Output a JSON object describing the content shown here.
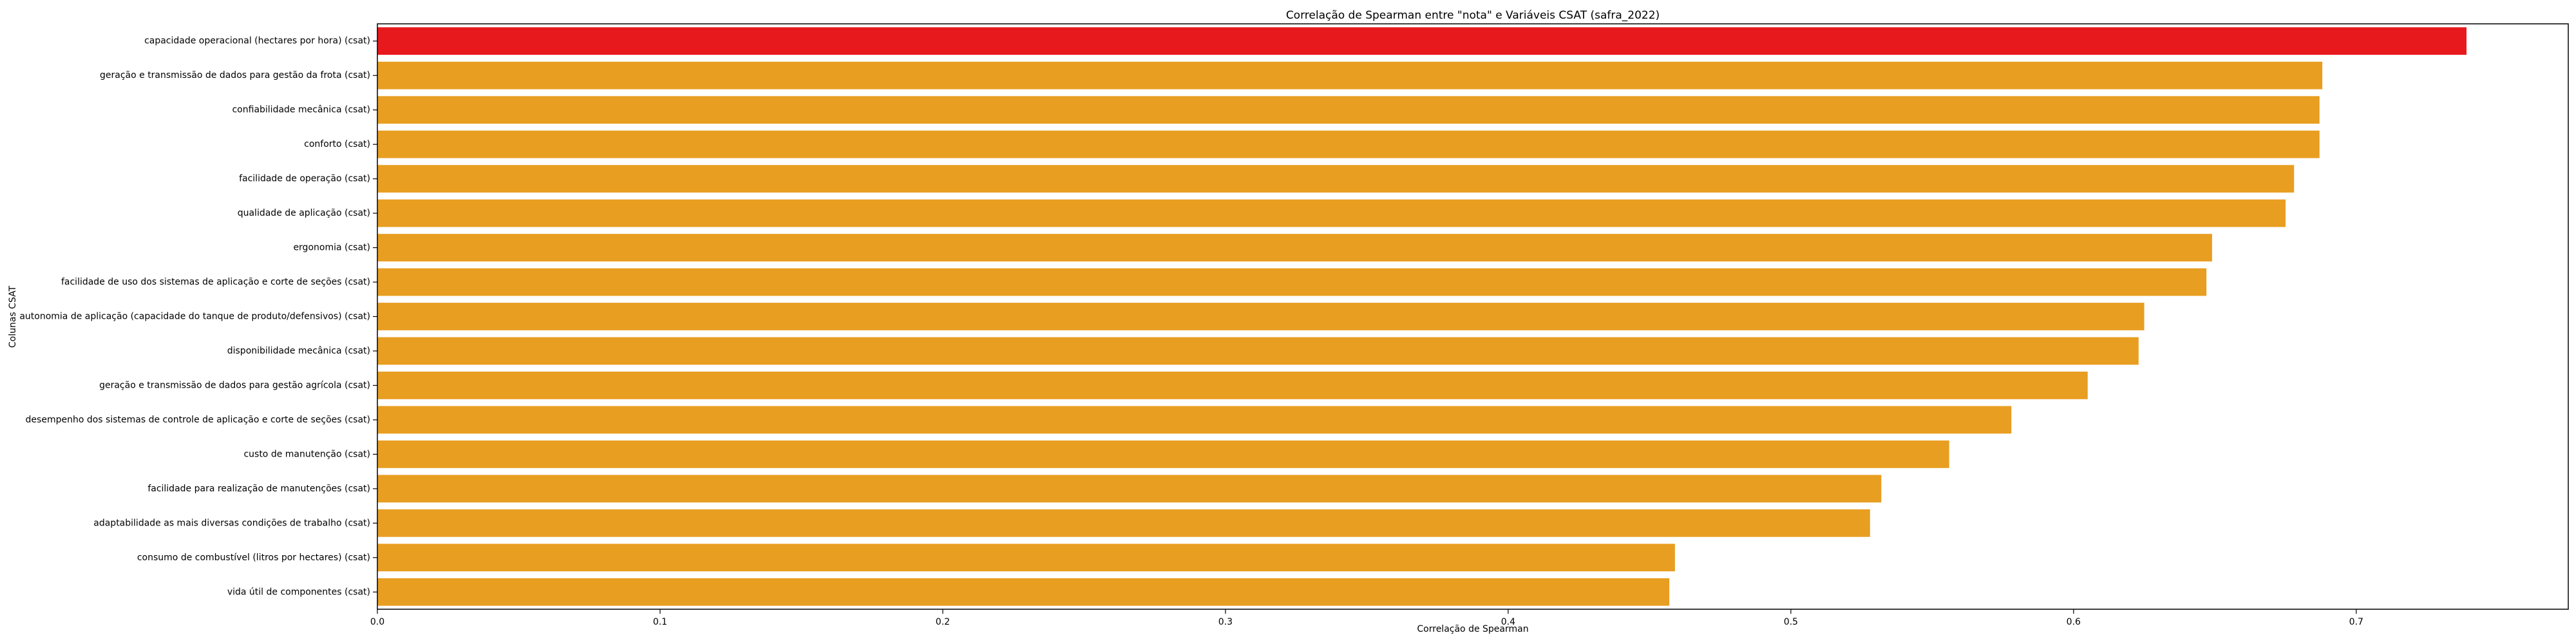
{
  "chart_data": {
    "type": "bar",
    "orientation": "horizontal",
    "title": "Correlação de Spearman entre \"nota\" e Variáveis CSAT (safra_2022)",
    "xlabel": "Correlação de Spearman",
    "ylabel": "Colunas CSAT",
    "xlim": [
      0.0,
      0.775
    ],
    "xticks": [
      0.0,
      0.1,
      0.2,
      0.3,
      0.4,
      0.5,
      0.6,
      0.7
    ],
    "xtick_labels": [
      "0.0",
      "0.1",
      "0.2",
      "0.3",
      "0.4",
      "0.5",
      "0.6",
      "0.7"
    ],
    "grid": false,
    "colors": {
      "highlight": "#e8191d",
      "default": "#e89e21"
    },
    "categories": [
      "capacidade operacional (hectares por hora) (csat)",
      "geração e transmissão de dados para gestão da frota (csat)",
      "confiabilidade mecânica (csat)",
      "conforto (csat)",
      "facilidade de operação (csat)",
      "qualidade de aplicação (csat)",
      "ergonomia (csat)",
      "facilidade de uso dos sistemas de aplicação e corte de seções (csat)",
      "autonomia de aplicação (capacidade do tanque de produto/defensivos) (csat)",
      "disponibilidade mecânica (csat)",
      "geração e transmissão de dados para gestão agrícola (csat)",
      "desempenho dos sistemas de controle de aplicação e corte de seções (csat)",
      "custo de manutenção (csat)",
      "facilidade para realização de manutenções (csat)",
      "adaptabilidade as mais diversas condições de trabalho (csat)",
      "consumo de combustível (litros por hectares) (csat)",
      "vida útil de componentes (csat)"
    ],
    "values": [
      0.739,
      0.688,
      0.687,
      0.687,
      0.678,
      0.675,
      0.649,
      0.647,
      0.625,
      0.623,
      0.605,
      0.578,
      0.556,
      0.532,
      0.528,
      0.459,
      0.457
    ],
    "highlight_index": 0
  }
}
